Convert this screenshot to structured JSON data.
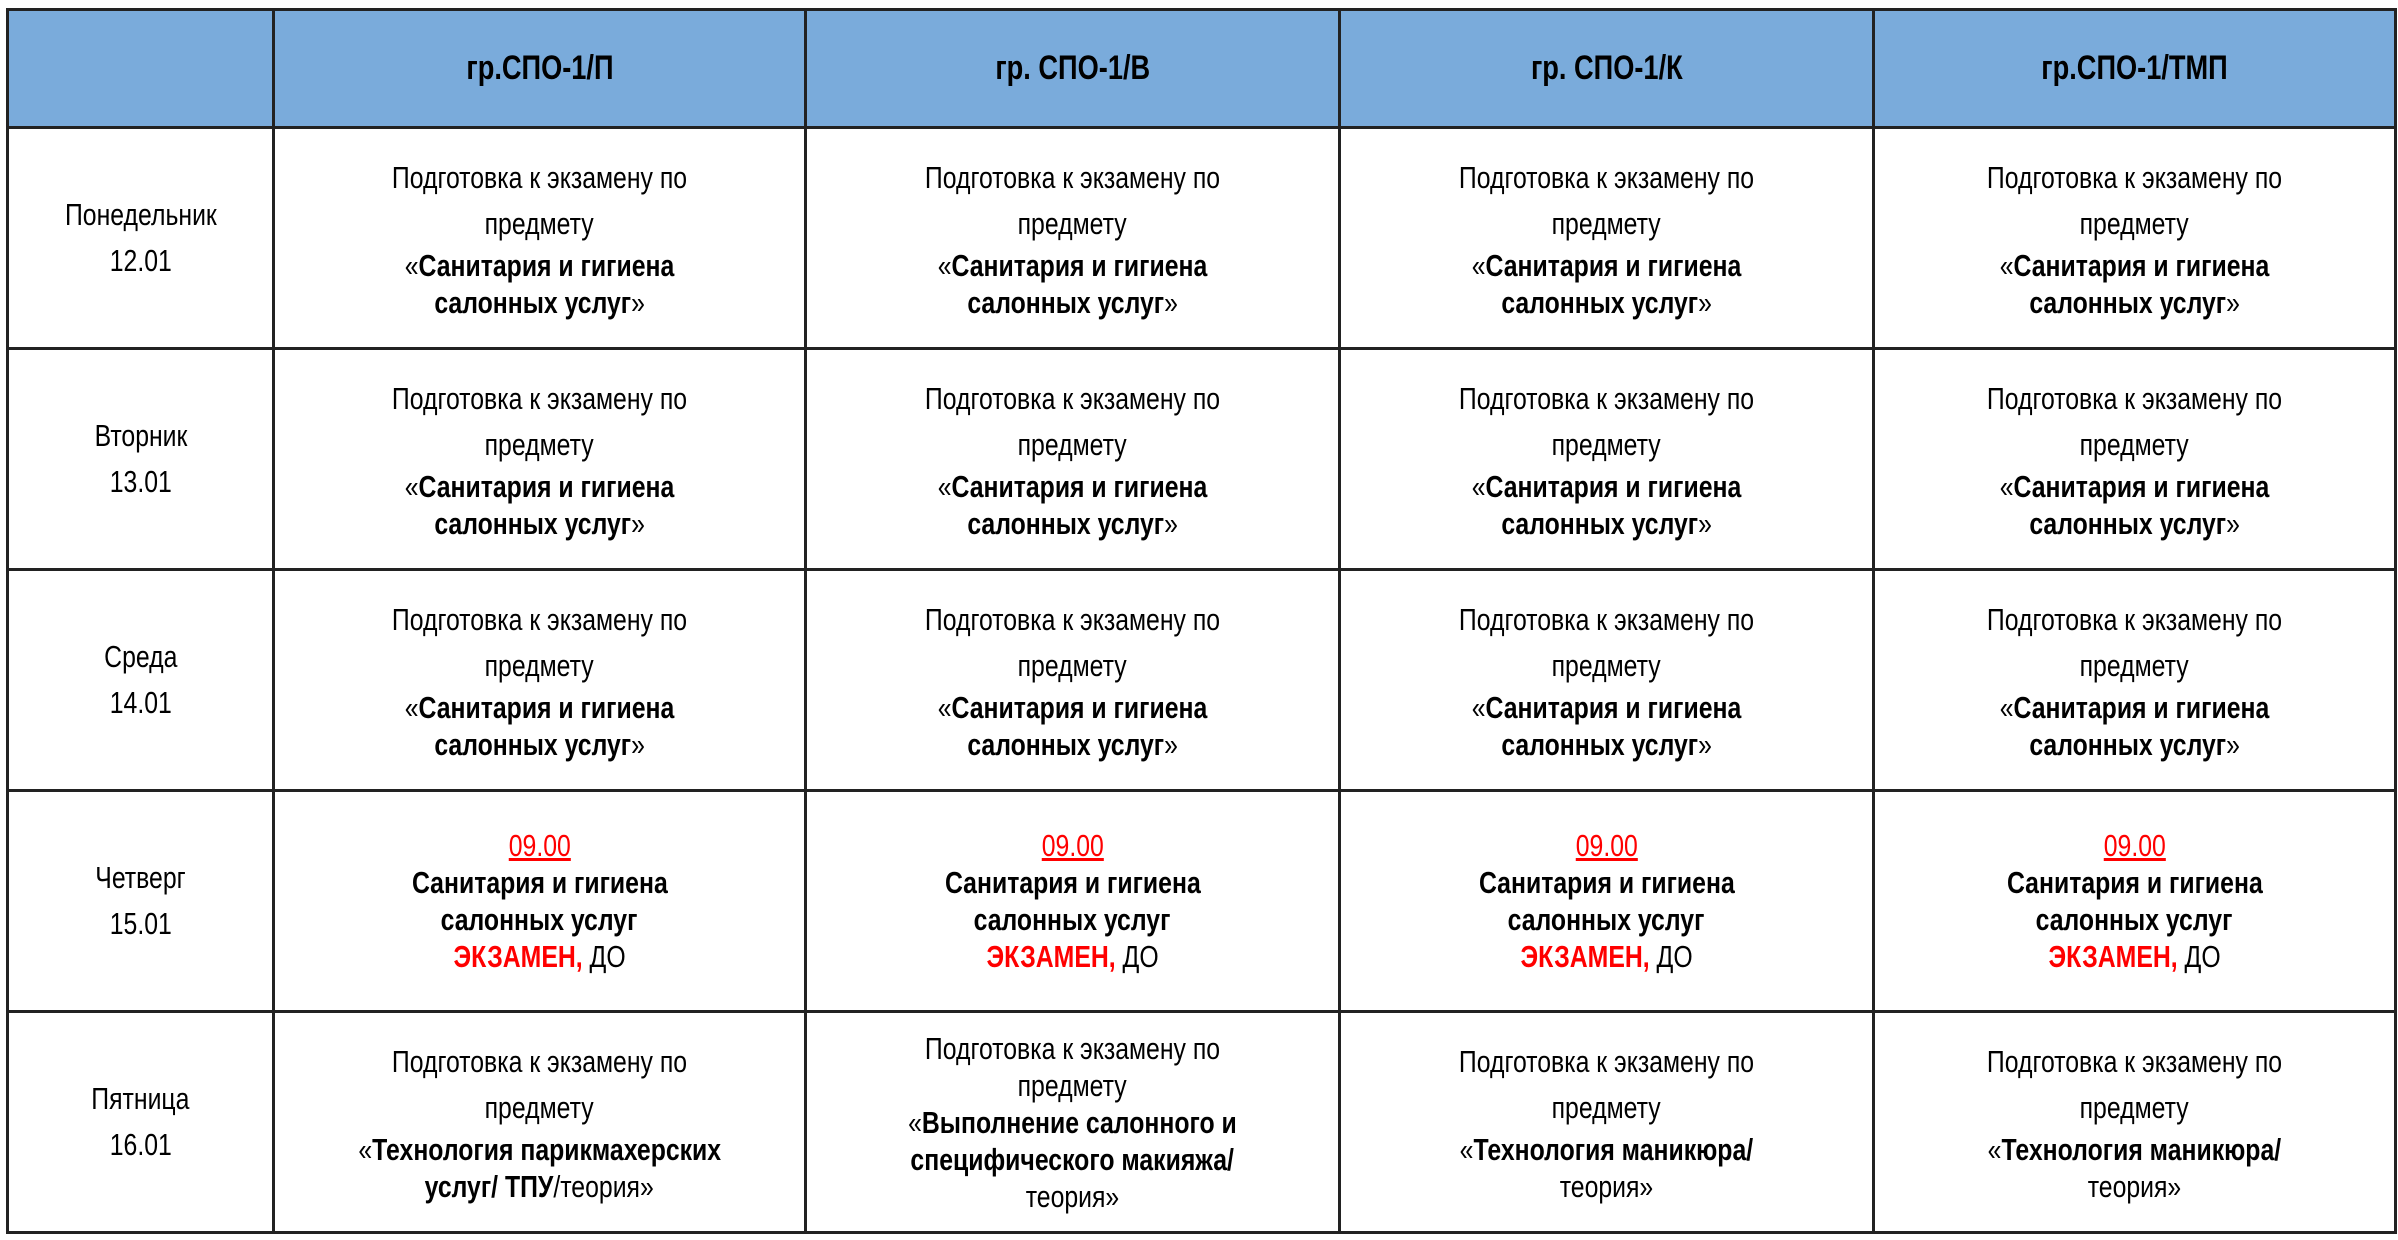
{
  "colors": {
    "header_bg": "#7aabdb",
    "accent_red": "#ff0000",
    "border": "#222222"
  },
  "header": {
    "corner": "",
    "groups": [
      "гр.СПО-1/П",
      "гр. СПО-1/В",
      "гр. СПО-1/К",
      "гр.СПО-1/ТМП"
    ]
  },
  "rows": [
    {
      "day": "Понедельник",
      "date": "12.01",
      "cells": [
        [
          [
            {
              "t": "Подготовка к экзамену по"
            }
          ],
          [
            {
              "t": "предмету"
            }
          ],
          [
            {
              "t": "«"
            },
            {
              "t": "Санитария и гигиена",
              "s": "b"
            }
          ],
          [
            {
              "t": "салонных услуг",
              "s": "b"
            },
            {
              "t": "»"
            }
          ]
        ],
        [
          [
            {
              "t": "Подготовка к экзамену по"
            }
          ],
          [
            {
              "t": "предмету"
            }
          ],
          [
            {
              "t": "«"
            },
            {
              "t": "Санитария и гигиена",
              "s": "b"
            }
          ],
          [
            {
              "t": "салонных услуг",
              "s": "b"
            },
            {
              "t": "»"
            }
          ]
        ],
        [
          [
            {
              "t": "Подготовка к экзамену по"
            }
          ],
          [
            {
              "t": "предмету"
            }
          ],
          [
            {
              "t": "«"
            },
            {
              "t": "Санитария и гигиена",
              "s": "b"
            }
          ],
          [
            {
              "t": "салонных услуг",
              "s": "b"
            },
            {
              "t": "»"
            }
          ]
        ],
        [
          [
            {
              "t": "Подготовка к экзамену по"
            }
          ],
          [
            {
              "t": "предмету"
            }
          ],
          [
            {
              "t": "«"
            },
            {
              "t": "Санитария и гигиена",
              "s": "b"
            }
          ],
          [
            {
              "t": "салонных услуг",
              "s": "b"
            },
            {
              "t": "»"
            }
          ]
        ]
      ]
    },
    {
      "day": "Вторник",
      "date": "13.01",
      "cells": [
        [
          [
            {
              "t": "Подготовка к экзамену по"
            }
          ],
          [
            {
              "t": "предмету"
            }
          ],
          [
            {
              "t": "«"
            },
            {
              "t": "Санитария и гигиена",
              "s": "b"
            }
          ],
          [
            {
              "t": "салонных услуг",
              "s": "b"
            },
            {
              "t": "»"
            }
          ]
        ],
        [
          [
            {
              "t": "Подготовка к экзамену по"
            }
          ],
          [
            {
              "t": "предмету"
            }
          ],
          [
            {
              "t": "«"
            },
            {
              "t": "Санитария и гигиена",
              "s": "b"
            }
          ],
          [
            {
              "t": "салонных услуг",
              "s": "b"
            },
            {
              "t": "»"
            }
          ]
        ],
        [
          [
            {
              "t": "Подготовка к экзамену по"
            }
          ],
          [
            {
              "t": "предмету"
            }
          ],
          [
            {
              "t": "«"
            },
            {
              "t": "Санитария и гигиена",
              "s": "b"
            }
          ],
          [
            {
              "t": "салонных услуг",
              "s": "b"
            },
            {
              "t": "»"
            }
          ]
        ],
        [
          [
            {
              "t": "Подготовка к экзамену по"
            }
          ],
          [
            {
              "t": "предмету"
            }
          ],
          [
            {
              "t": "«"
            },
            {
              "t": "Санитария и гигиена",
              "s": "b"
            }
          ],
          [
            {
              "t": "салонных услуг",
              "s": "b"
            },
            {
              "t": "»"
            }
          ]
        ]
      ]
    },
    {
      "day": "Среда",
      "date": "14.01",
      "cells": [
        [
          [
            {
              "t": "Подготовка к экзамену по"
            }
          ],
          [
            {
              "t": "предмету"
            }
          ],
          [
            {
              "t": "«"
            },
            {
              "t": "Санитария и гигиена",
              "s": "b"
            }
          ],
          [
            {
              "t": "салонных услуг",
              "s": "b"
            },
            {
              "t": "»"
            }
          ]
        ],
        [
          [
            {
              "t": "Подготовка к экзамену по"
            }
          ],
          [
            {
              "t": "предмету"
            }
          ],
          [
            {
              "t": "«"
            },
            {
              "t": "Санитария и гигиена",
              "s": "b"
            }
          ],
          [
            {
              "t": "салонных услуг",
              "s": "b"
            },
            {
              "t": "»"
            }
          ]
        ],
        [
          [
            {
              "t": "Подготовка к экзамену по"
            }
          ],
          [
            {
              "t": "предмету"
            }
          ],
          [
            {
              "t": "«"
            },
            {
              "t": "Санитария и гигиена",
              "s": "b"
            }
          ],
          [
            {
              "t": "салонных услуг",
              "s": "b"
            },
            {
              "t": "»"
            }
          ]
        ],
        [
          [
            {
              "t": "Подготовка к экзамену по"
            }
          ],
          [
            {
              "t": "предмету"
            }
          ],
          [
            {
              "t": "«"
            },
            {
              "t": "Санитария и гигиена",
              "s": "b"
            }
          ],
          [
            {
              "t": "салонных услуг",
              "s": "b"
            },
            {
              "t": "»"
            }
          ]
        ]
      ]
    },
    {
      "day": "Четверг",
      "date": "15.01",
      "cells": [
        [
          [
            {
              "t": "09.00",
              "s": "r u"
            }
          ],
          [
            {
              "t": "Санитария и гигиена",
              "s": "b"
            }
          ],
          [
            {
              "t": "салонных услуг",
              "s": "b"
            }
          ],
          [
            {
              "t": "ЭКЗАМЕН,",
              "s": "b r"
            },
            {
              "t": " ДО"
            }
          ]
        ],
        [
          [
            {
              "t": "09.00",
              "s": "r u"
            }
          ],
          [
            {
              "t": "Санитария и гигиена",
              "s": "b"
            }
          ],
          [
            {
              "t": "салонных услуг",
              "s": "b"
            }
          ],
          [
            {
              "t": "ЭКЗАМЕН,",
              "s": "b r"
            },
            {
              "t": " ДО"
            }
          ]
        ],
        [
          [
            {
              "t": "09.00",
              "s": "r u"
            }
          ],
          [
            {
              "t": "Санитария и гигиена",
              "s": "b"
            }
          ],
          [
            {
              "t": "салонных услуг",
              "s": "b"
            }
          ],
          [
            {
              "t": "ЭКЗАМЕН,",
              "s": "b r"
            },
            {
              "t": " ДО"
            }
          ]
        ],
        [
          [
            {
              "t": "09.00",
              "s": "r u"
            }
          ],
          [
            {
              "t": "Санитария и гигиена",
              "s": "b"
            }
          ],
          [
            {
              "t": "салонных услуг",
              "s": "b"
            }
          ],
          [
            {
              "t": "ЭКЗАМЕН,",
              "s": "b r"
            },
            {
              "t": " ДО"
            }
          ]
        ]
      ]
    },
    {
      "day": "Пятница",
      "date": "16.01",
      "cells": [
        [
          [
            {
              "t": "Подготовка к экзамену по"
            }
          ],
          [
            {
              "t": "предмету"
            }
          ],
          [
            {
              "t": "«"
            },
            {
              "t": "Технология парикмахерских",
              "s": "b"
            }
          ],
          [
            {
              "t": "услуг/ ТПУ",
              "s": "b"
            },
            {
              "t": "/теория»"
            }
          ]
        ],
        [
          [
            {
              "t": "Подготовка к экзамену по"
            }
          ],
          [
            {
              "t": "предмету"
            }
          ],
          [
            {
              "t": "«"
            },
            {
              "t": "Выполнение салонного и",
              "s": "b"
            }
          ],
          [
            {
              "t": "специфического макияжа/",
              "s": "b"
            }
          ],
          [
            {
              "t": "теория»"
            }
          ]
        ],
        [
          [
            {
              "t": "Подготовка к экзамену по"
            }
          ],
          [
            {
              "t": "предмету"
            }
          ],
          [
            {
              "t": "«"
            },
            {
              "t": "Технология маникюра/",
              "s": "b"
            }
          ],
          [
            {
              "t": "теория»"
            }
          ]
        ],
        [
          [
            {
              "t": "Подготовка к экзамену по"
            }
          ],
          [
            {
              "t": "предмету"
            }
          ],
          [
            {
              "t": "«"
            },
            {
              "t": "Технология маникюра/",
              "s": "b"
            }
          ],
          [
            {
              "t": "теория»"
            }
          ]
        ]
      ]
    }
  ]
}
